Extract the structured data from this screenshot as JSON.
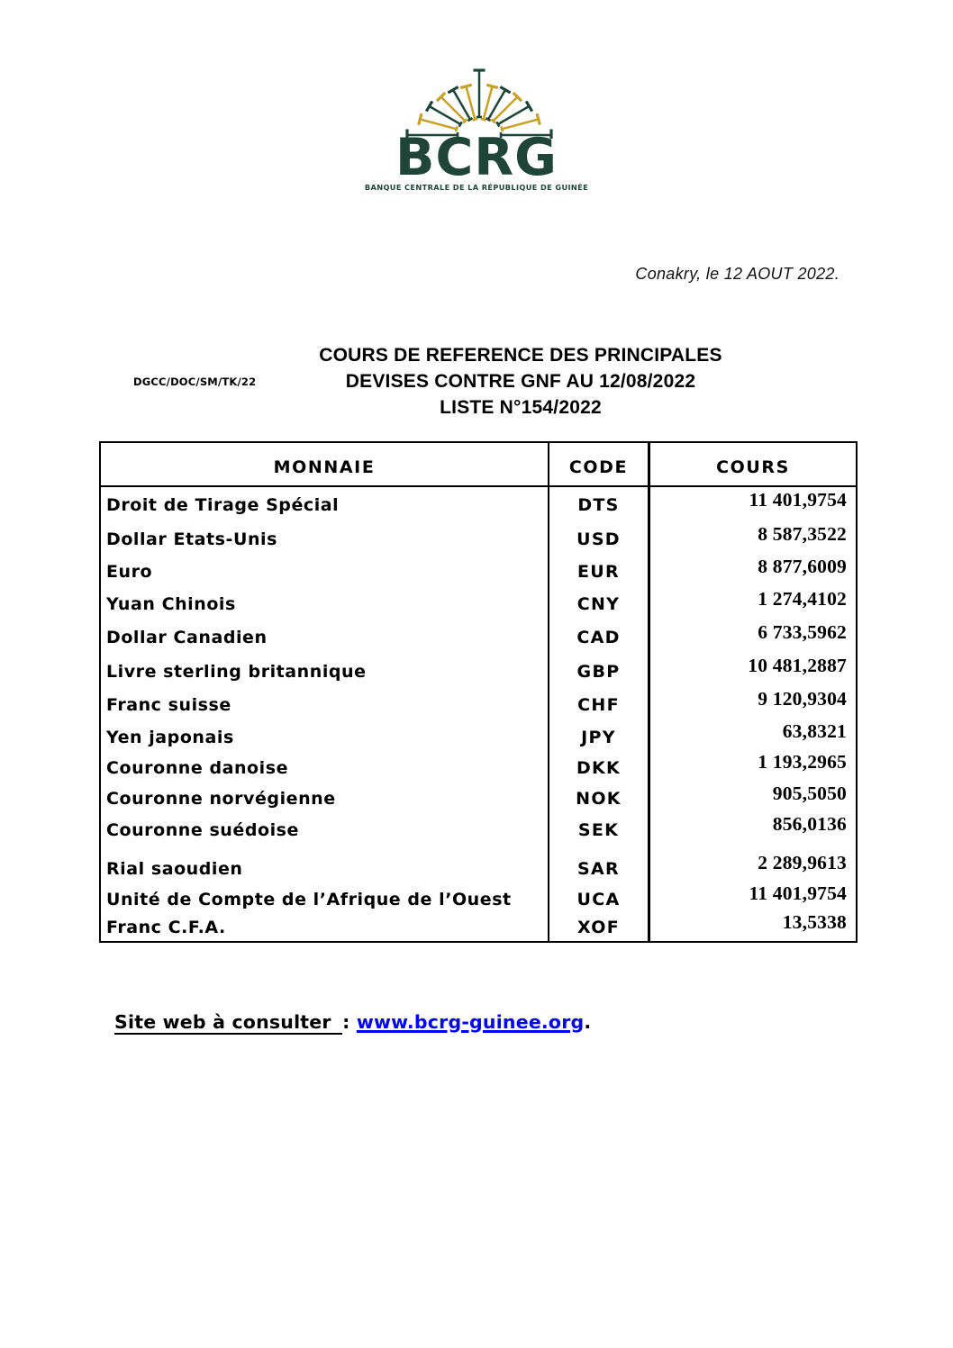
{
  "logo": {
    "text": "BCRG",
    "tagline": "BANQUE CENTRALE DE LA RÉPUBLIQUE DE GUINÉE",
    "colors": {
      "green": "#1f4539",
      "gold": "#c7a126"
    }
  },
  "date_line": "Conakry, le 12 AOUT 2022.",
  "reference_code": "DGCC/DOC/SM/TK/22",
  "title": {
    "line1": "COURS DE REFERENCE DES PRINCIPALES",
    "line2": "DEVISES CONTRE GNF AU 12/08/2022",
    "line3": "LISTE N°154/2022"
  },
  "table": {
    "headers": {
      "monnaie": "MONNAIE",
      "code": "CODE",
      "cours": "COURS"
    },
    "rows": [
      {
        "monnaie": "Droit de Tirage Spécial",
        "code": "DTS",
        "cours": "11 401,9754"
      },
      {
        "monnaie": "Dollar Etats-Unis",
        "code": "USD",
        "cours": "8 587,3522"
      },
      {
        "monnaie": "Euro",
        "code": "EUR",
        "cours": "8 877,6009"
      },
      {
        "monnaie": "Yuan Chinois",
        "code": "CNY",
        "cours": "1 274,4102"
      },
      {
        "monnaie": "Dollar Canadien",
        "code": "CAD",
        "cours": "6 733,5962"
      },
      {
        "monnaie": "Livre sterling britannique",
        "code": "GBP",
        "cours": "10 481,2887"
      },
      {
        "monnaie": "Franc suisse",
        "code": "CHF",
        "cours": "9 120,9304"
      },
      {
        "monnaie": "Yen japonais",
        "code": "JPY",
        "cours": "63,8321"
      },
      {
        "monnaie": "Couronne danoise",
        "code": "DKK",
        "cours": "1 193,2965"
      },
      {
        "monnaie": "Couronne norvégienne",
        "code": "NOK",
        "cours": "905,5050"
      },
      {
        "monnaie": "Couronne suédoise",
        "code": "SEK",
        "cours": "856,0136"
      },
      {
        "monnaie": "Rial saoudien",
        "code": "SAR",
        "cours": "2 289,9613"
      },
      {
        "monnaie": "Unité de Compte de l’Afrique de l’Ouest",
        "code": "UCA",
        "cours": "11 401,9754"
      },
      {
        "monnaie": "Franc C.F.A.",
        "code": "XOF",
        "cours": "13,5338"
      }
    ]
  },
  "footer": {
    "label": "Site web à consulter ",
    "separator": ": ",
    "link": "www.bcrg-guinee.org",
    "period": ".",
    "link_color": "#0000ff"
  }
}
